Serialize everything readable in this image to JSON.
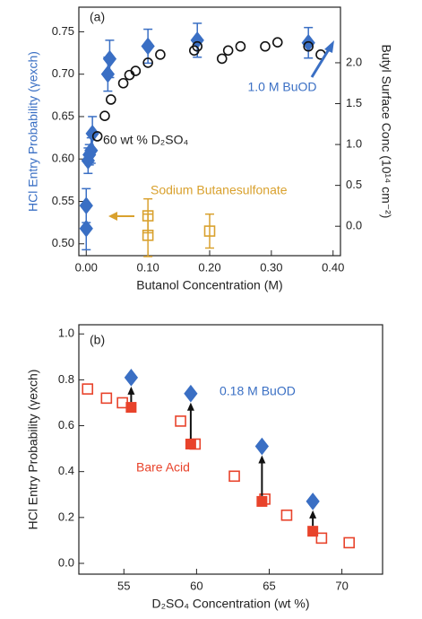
{
  "chart_data": [
    {
      "type": "scatter",
      "xlabel": "Butanol Concentration (M)",
      "ylabel": "HCl Entry Probability (γexch)",
      "y2label": "Butyl Surface Conc (10¹⁴ cm⁻²)",
      "annotations": [
        "(a)",
        "1.0 M BuOD",
        "60 wt % D₂SO₄",
        "Sodium Butanesulfonate"
      ],
      "xlim": [
        -0.012,
        0.412
      ],
      "xticks": [
        {
          "value": 0,
          "label": "0.00"
        },
        {
          "value": 0.1,
          "label": "0.10"
        },
        {
          "value": 0.2,
          "label": "0.20"
        },
        {
          "value": 0.3,
          "label": "0.30"
        },
        {
          "value": 0.4,
          "label": "0.40"
        }
      ],
      "ylim": [
        0.486,
        0.779
      ],
      "yticks": [
        {
          "value": 0.5,
          "label": "0.50"
        },
        {
          "value": 0.55,
          "label": "0.55"
        },
        {
          "value": 0.6,
          "label": "0.60"
        },
        {
          "value": 0.65,
          "label": "0.65"
        },
        {
          "value": 0.7,
          "label": "0.70"
        },
        {
          "value": 0.75,
          "label": "0.75"
        }
      ],
      "y2lim": [
        -0.36,
        2.68
      ],
      "y2ticks": [
        {
          "value": 0,
          "label": "0.0"
        },
        {
          "value": 0.5,
          "label": "0.5"
        },
        {
          "value": 1,
          "label": "1.0"
        },
        {
          "value": 1.5,
          "label": "1.5"
        },
        {
          "value": 2,
          "label": "2.0"
        }
      ],
      "series": [
        {
          "color": "#3a6fc4",
          "marker": "diamond",
          "filled": true,
          "x": [
            0.0,
            0.0,
            0.003,
            0.005,
            0.008,
            0.01,
            0.035,
            0.038,
            0.1,
            0.18,
            0.36
          ],
          "values": [
            0.518,
            0.545,
            0.598,
            0.605,
            0.61,
            0.63,
            0.7,
            0.718,
            0.733,
            0.74,
            0.737
          ],
          "errors": [
            0.025,
            0.02,
            0.015,
            0.012,
            0.015,
            0.02,
            0.02,
            0.022,
            0.02,
            0.02,
            0.018
          ]
        },
        {
          "color": "#111111",
          "marker": "circle",
          "filled": false,
          "axis": "y2",
          "x": [
            0.018,
            0.03,
            0.04,
            0.06,
            0.07,
            0.08,
            0.1,
            0.12,
            0.175,
            0.18,
            0.22,
            0.23,
            0.25,
            0.29,
            0.31,
            0.36,
            0.38
          ],
          "values": [
            1.1,
            1.35,
            1.55,
            1.75,
            1.85,
            1.9,
            2.0,
            2.1,
            2.15,
            2.2,
            2.05,
            2.15,
            2.2,
            2.2,
            2.25,
            2.2,
            2.1
          ]
        },
        {
          "color": "#d9a12e",
          "marker": "square",
          "filled": false,
          "x": [
            0.1,
            0.1,
            0.2
          ],
          "values": [
            0.533,
            0.51,
            0.515
          ],
          "errors": [
            0.02,
            0.025,
            0.02
          ]
        }
      ]
    },
    {
      "type": "scatter",
      "xlabel": "D₂SO₄ Concentration (wt %)",
      "ylabel": "HCl Entry Probability (γexch)",
      "annotations": [
        "(b)",
        "0.18 M BuOD",
        "Bare Acid"
      ],
      "xlim": [
        51.9,
        72.8
      ],
      "xticks": [
        55,
        60,
        65,
        70
      ],
      "ylim": [
        -0.047,
        1.04
      ],
      "yticks": [
        {
          "value": 0,
          "label": "0.0"
        },
        {
          "value": 0.2,
          "label": "0.2"
        },
        {
          "value": 0.4,
          "label": "0.4"
        },
        {
          "value": 0.6,
          "label": "0.6"
        },
        {
          "value": 0.8,
          "label": "0.8"
        },
        {
          "value": 1,
          "label": "1.0"
        }
      ],
      "series": [
        {
          "color": "#e8432b",
          "marker": "square",
          "filled": false,
          "x": [
            52.5,
            53.8,
            54.9,
            58.9,
            59.9,
            62.6,
            64.7,
            66.2,
            68.6,
            70.5
          ],
          "values": [
            0.76,
            0.72,
            0.7,
            0.62,
            0.52,
            0.38,
            0.28,
            0.21,
            0.11,
            0.09
          ]
        },
        {
          "color": "#e8432b",
          "marker": "square",
          "filled": true,
          "x": [
            55.5,
            59.6,
            64.5,
            68.0
          ],
          "values": [
            0.68,
            0.52,
            0.27,
            0.14
          ]
        },
        {
          "color": "#3a6fc4",
          "marker": "diamond",
          "filled": true,
          "x": [
            55.5,
            59.6,
            64.5,
            68.0
          ],
          "values": [
            0.81,
            0.74,
            0.51,
            0.27
          ]
        }
      ]
    }
  ]
}
